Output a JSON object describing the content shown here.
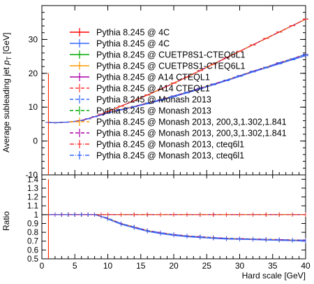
{
  "chart_data": {
    "type": "line",
    "xlabel": "Hard scale [GeV]",
    "xlim": [
      0,
      40
    ],
    "x_ticks": [
      0,
      5,
      10,
      15,
      20,
      25,
      30,
      35,
      40
    ],
    "top_panel": {
      "ylabel": "Average subleading jet p_T [GeV]",
      "ylabel_main": "Average subleading jet ",
      "ylabel_sym": "p",
      "ylabel_sub": "T",
      "ylabel_unit": " [GeV]",
      "ylim": [
        -10,
        40
      ],
      "y_ticks": [
        -10,
        0,
        10,
        20,
        30
      ]
    },
    "bottom_panel": {
      "ylabel": "Ratio",
      "ylim": [
        0.5,
        1.45
      ],
      "y_ticks": [
        0.5,
        0.6,
        0.7,
        0.8,
        0.9,
        1,
        1.1,
        1.2,
        1.3,
        1.4
      ],
      "reference": 1
    },
    "x": [
      1,
      2,
      3,
      4,
      5,
      6,
      7,
      8,
      9,
      10,
      12,
      14,
      16,
      18,
      20,
      22,
      24,
      26,
      28,
      30,
      32,
      34,
      36,
      38,
      40
    ],
    "series": [
      {
        "name": "Pythia 8.245 @ 4C",
        "color": "#ff0000",
        "dash": "solid",
        "values": [
          5.5,
          5.4,
          5.5,
          5.6,
          5.8,
          6.1,
          6.6,
          7.2,
          7.9,
          8.7,
          10.3,
          11.9,
          13.6,
          15.3,
          17.1,
          18.9,
          20.8,
          22.7,
          24.6,
          26.5,
          28.4,
          30.3,
          32.2,
          34.1,
          36.0
        ],
        "ratio": [
          1.0,
          1.0,
          1.0,
          1.0,
          1.0,
          1.0,
          1.0,
          1.0,
          1.0,
          1.0,
          1.0,
          1.0,
          1.0,
          1.0,
          1.0,
          1.0,
          1.0,
          1.0,
          1.0,
          1.0,
          1.0,
          1.0,
          1.0,
          1.0,
          1.0
        ]
      },
      {
        "name": "Pythia 8.245 @ 4C",
        "color": "#3366ff",
        "dash": "solid",
        "values": [
          5.5,
          5.4,
          5.5,
          5.6,
          5.8,
          6.1,
          6.6,
          7.2,
          7.7,
          8.3,
          9.2,
          10.1,
          11.0,
          12.0,
          13.1,
          14.2,
          15.4,
          16.6,
          17.8,
          19.1,
          20.4,
          21.6,
          22.8,
          24.0,
          25.2
        ],
        "ratio": [
          1.0,
          1.0,
          1.0,
          1.0,
          1.0,
          1.0,
          1.0,
          1.0,
          0.98,
          0.95,
          0.89,
          0.85,
          0.81,
          0.785,
          0.765,
          0.75,
          0.74,
          0.731,
          0.723,
          0.72,
          0.718,
          0.713,
          0.708,
          0.704,
          0.7
        ]
      },
      {
        "name": "Pythia 8.245 @ CUETP8S1-CTEQ6L1",
        "color": "#00aa00",
        "dash": "solid",
        "values": [
          5.5,
          5.4,
          5.5,
          5.6,
          5.8,
          6.1,
          6.6,
          7.2,
          7.9,
          8.7,
          10.3,
          11.9,
          13.6,
          15.3,
          17.1,
          18.9,
          20.8,
          22.7,
          24.6,
          26.5,
          28.4,
          30.3,
          32.2,
          34.1,
          36.0
        ],
        "ratio": [
          1.0,
          1.0,
          1.0,
          1.0,
          1.0,
          1.0,
          1.0,
          1.0,
          1.0,
          1.0,
          1.0,
          1.0,
          1.0,
          1.0,
          1.0,
          1.0,
          1.0,
          1.0,
          1.0,
          1.0,
          1.0,
          1.0,
          1.0,
          1.0,
          1.0
        ]
      },
      {
        "name": "Pythia 8.245 @ CUETP8S1-CTEQ6L1",
        "color": "#ff9900",
        "dash": "solid",
        "values": [
          5.5,
          5.4,
          5.5,
          5.6,
          5.8,
          6.1,
          6.6,
          7.2,
          7.7,
          8.3,
          9.3,
          10.2,
          11.2,
          12.2,
          13.3,
          14.4,
          15.6,
          16.8,
          18.0,
          19.3,
          20.6,
          21.8,
          23.1,
          24.3,
          25.6
        ],
        "ratio": [
          1.0,
          1.0,
          1.0,
          1.0,
          1.0,
          1.0,
          1.0,
          1.0,
          0.98,
          0.96,
          0.9,
          0.86,
          0.82,
          0.795,
          0.775,
          0.76,
          0.75,
          0.74,
          0.732,
          0.728,
          0.724,
          0.72,
          0.717,
          0.713,
          0.711
        ]
      },
      {
        "name": "Pythia 8.245 @ A14 CTEQL1",
        "color": "#aa00aa",
        "dash": "solid",
        "values": [
          5.5,
          5.4,
          5.5,
          5.6,
          5.8,
          6.1,
          6.6,
          7.2,
          7.9,
          8.7,
          10.3,
          11.9,
          13.6,
          15.3,
          17.1,
          18.9,
          20.8,
          22.7,
          24.6,
          26.5,
          28.4,
          30.3,
          32.2,
          34.1,
          36.0
        ],
        "ratio": [
          1.0,
          1.0,
          1.0,
          1.0,
          1.0,
          1.0,
          1.0,
          1.0,
          1.0,
          1.0,
          1.0,
          1.0,
          1.0,
          1.0,
          1.0,
          1.0,
          1.0,
          1.0,
          1.0,
          1.0,
          1.0,
          1.0,
          1.0,
          1.0,
          1.0
        ]
      },
      {
        "name": "Pythia 8.245 @ A14 CTEQL1",
        "color": "#ff3333",
        "dash": "dashed",
        "values": [
          5.5,
          5.4,
          5.5,
          5.6,
          5.8,
          6.1,
          6.6,
          7.2,
          7.7,
          8.3,
          9.3,
          10.2,
          11.2,
          12.2,
          13.3,
          14.4,
          15.6,
          16.8,
          18.0,
          19.3,
          20.6,
          21.8,
          23.1,
          24.3,
          25.6
        ],
        "ratio": [
          1.0,
          1.0,
          1.0,
          1.0,
          1.0,
          1.0,
          1.0,
          1.0,
          0.98,
          0.96,
          0.9,
          0.86,
          0.82,
          0.795,
          0.775,
          0.76,
          0.75,
          0.74,
          0.732,
          0.728,
          0.724,
          0.72,
          0.717,
          0.713,
          0.711
        ]
      },
      {
        "name": "Pythia 8.245 @ Monash 2013",
        "color": "#3366ff",
        "dash": "dashed",
        "values": [
          5.5,
          5.4,
          5.5,
          5.6,
          5.8,
          6.1,
          6.6,
          7.2,
          7.9,
          8.7,
          10.3,
          11.9,
          13.6,
          15.3,
          17.1,
          18.9,
          20.8,
          22.7,
          24.6,
          26.5,
          28.4,
          30.3,
          32.2,
          34.1,
          36.0
        ],
        "ratio": [
          1.0,
          1.0,
          1.0,
          1.0,
          1.0,
          1.0,
          1.0,
          1.0,
          1.0,
          1.0,
          1.0,
          1.0,
          1.0,
          1.0,
          1.0,
          1.0,
          1.0,
          1.0,
          1.0,
          1.0,
          1.0,
          1.0,
          1.0,
          1.0,
          1.0
        ]
      },
      {
        "name": "Pythia 8.245 @ Monash 2013",
        "color": "#00aa00",
        "dash": "dashed",
        "values": [
          5.5,
          5.4,
          5.5,
          5.6,
          5.8,
          6.1,
          6.6,
          7.2,
          7.7,
          8.3,
          9.3,
          10.2,
          11.2,
          12.2,
          13.3,
          14.4,
          15.6,
          16.8,
          18.0,
          19.3,
          20.6,
          21.8,
          23.1,
          24.3,
          25.6
        ],
        "ratio": [
          1.0,
          1.0,
          1.0,
          1.0,
          1.0,
          1.0,
          1.0,
          1.0,
          0.98,
          0.96,
          0.9,
          0.86,
          0.82,
          0.795,
          0.775,
          0.76,
          0.75,
          0.74,
          0.732,
          0.728,
          0.724,
          0.72,
          0.717,
          0.713,
          0.711
        ]
      },
      {
        "name": "Pythia 8.245 @ Monash 2013, 200,3,1.302,1.841",
        "color": "#ff9900",
        "dash": "dashed",
        "values": [
          5.5,
          5.4,
          5.5,
          5.6,
          5.8,
          6.1,
          6.6,
          7.2,
          7.9,
          8.7,
          10.3,
          11.9,
          13.6,
          15.3,
          17.1,
          18.9,
          20.8,
          22.7,
          24.6,
          26.5,
          28.4,
          30.3,
          32.2,
          34.1,
          36.0
        ],
        "ratio": [
          1.0,
          1.0,
          1.0,
          1.0,
          1.0,
          1.0,
          1.0,
          1.0,
          1.0,
          1.0,
          1.0,
          1.0,
          1.0,
          1.0,
          1.0,
          1.0,
          1.0,
          1.0,
          1.0,
          1.0,
          1.0,
          1.0,
          1.0,
          1.0,
          1.0
        ]
      },
      {
        "name": "Pythia 8.245 @ Monash 2013, 200,3,1.302,1.841",
        "color": "#aa00aa",
        "dash": "dashed",
        "values": [
          5.5,
          5.4,
          5.5,
          5.6,
          5.8,
          6.1,
          6.6,
          7.2,
          7.7,
          8.3,
          9.3,
          10.2,
          11.2,
          12.2,
          13.3,
          14.4,
          15.6,
          16.8,
          18.0,
          19.3,
          20.6,
          21.8,
          23.1,
          24.3,
          25.6
        ],
        "ratio": [
          1.0,
          1.0,
          1.0,
          1.0,
          1.0,
          1.0,
          1.0,
          1.0,
          0.98,
          0.96,
          0.9,
          0.86,
          0.82,
          0.795,
          0.775,
          0.76,
          0.75,
          0.74,
          0.732,
          0.728,
          0.724,
          0.72,
          0.717,
          0.713,
          0.711
        ]
      },
      {
        "name": "Pythia 8.245 @ Monash 2013, cteq6l1",
        "color": "#ff3333",
        "dash": "dashdot",
        "values": [
          5.5,
          5.4,
          5.5,
          5.6,
          5.8,
          6.1,
          6.6,
          7.2,
          7.9,
          8.7,
          10.3,
          11.9,
          13.6,
          15.3,
          17.1,
          18.9,
          20.8,
          22.7,
          24.6,
          26.5,
          28.4,
          30.3,
          32.2,
          34.1,
          36.0
        ],
        "ratio": [
          1.0,
          1.0,
          1.0,
          1.0,
          1.0,
          1.0,
          1.0,
          1.0,
          1.0,
          1.0,
          1.0,
          1.0,
          1.0,
          1.0,
          1.0,
          1.0,
          1.0,
          1.0,
          1.0,
          1.0,
          1.0,
          1.0,
          1.0,
          1.0,
          1.0
        ]
      },
      {
        "name": "Pythia 8.245 @ Monash 2013, cteq6l1",
        "color": "#3366ff",
        "dash": "dashdot",
        "values": [
          5.5,
          5.4,
          5.5,
          5.6,
          5.8,
          6.1,
          6.6,
          7.2,
          7.7,
          8.3,
          9.3,
          10.2,
          11.2,
          12.2,
          13.3,
          14.4,
          15.6,
          16.8,
          18.0,
          19.3,
          20.6,
          21.8,
          23.1,
          24.3,
          25.6
        ],
        "ratio": [
          1.0,
          1.0,
          1.0,
          1.0,
          1.0,
          1.0,
          1.0,
          1.0,
          0.98,
          0.96,
          0.9,
          0.86,
          0.82,
          0.795,
          0.775,
          0.76,
          0.75,
          0.74,
          0.732,
          0.728,
          0.724,
          0.72,
          0.717,
          0.713,
          0.711
        ]
      }
    ],
    "legend_position": "top-left",
    "grid": false
  }
}
